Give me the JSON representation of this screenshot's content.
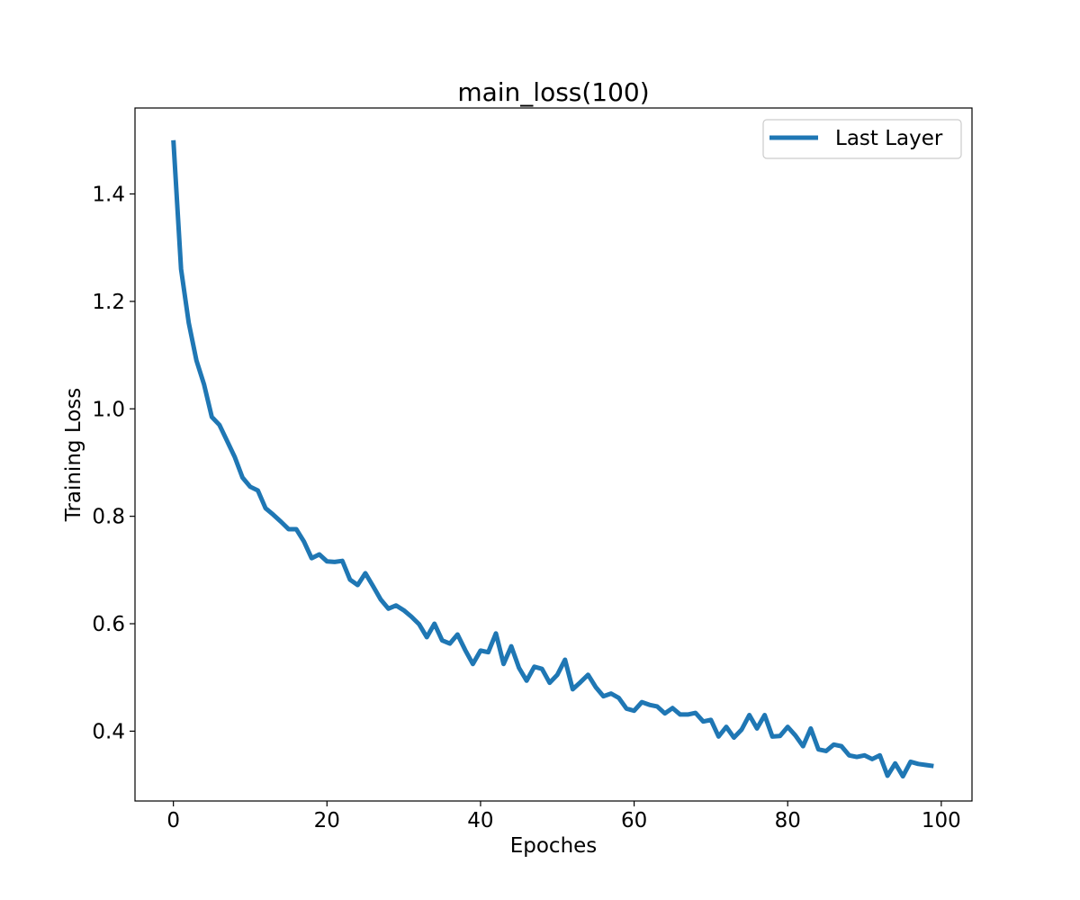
{
  "chart_data": {
    "type": "line",
    "title": "main_loss(100)",
    "xlabel": "Epoches",
    "ylabel": "Training Loss",
    "xlim": [
      -5,
      104
    ],
    "ylim": [
      0.27,
      1.56
    ],
    "xticks": [
      0,
      20,
      40,
      60,
      80,
      100
    ],
    "yticks": [
      0.4,
      0.6,
      0.8,
      1.0,
      1.2,
      1.4
    ],
    "xtick_labels": [
      "0",
      "20",
      "40",
      "60",
      "80",
      "100"
    ],
    "ytick_labels": [
      "0.4",
      "0.6",
      "0.8",
      "1.0",
      "1.2",
      "1.4"
    ],
    "grid": false,
    "legend_position": "top-right",
    "series": [
      {
        "name": "Last Layer",
        "color": "#1f77b4",
        "x": [
          0,
          1,
          2,
          3,
          4,
          5,
          6,
          7,
          8,
          9,
          10,
          11,
          12,
          13,
          14,
          15,
          16,
          17,
          18,
          19,
          20,
          21,
          22,
          23,
          24,
          25,
          26,
          27,
          28,
          29,
          30,
          31,
          32,
          33,
          34,
          35,
          36,
          37,
          38,
          39,
          40,
          41,
          42,
          43,
          44,
          45,
          46,
          47,
          48,
          49,
          50,
          51,
          52,
          53,
          54,
          55,
          56,
          57,
          58,
          59,
          60,
          61,
          62,
          63,
          64,
          65,
          66,
          67,
          68,
          69,
          70,
          71,
          72,
          73,
          74,
          75,
          76,
          77,
          78,
          79,
          80,
          81,
          82,
          83,
          84,
          85,
          86,
          87,
          88,
          89,
          90,
          91,
          92,
          93,
          94,
          95,
          96,
          97,
          98,
          99
        ],
        "values": [
          1.5,
          1.26,
          1.16,
          1.09,
          1.045,
          0.985,
          0.97,
          0.94,
          0.91,
          0.872,
          0.855,
          0.848,
          0.815,
          0.803,
          0.79,
          0.776,
          0.776,
          0.753,
          0.722,
          0.729,
          0.716,
          0.715,
          0.717,
          0.682,
          0.672,
          0.694,
          0.67,
          0.645,
          0.628,
          0.634,
          0.625,
          0.613,
          0.599,
          0.575,
          0.6,
          0.569,
          0.563,
          0.58,
          0.551,
          0.525,
          0.55,
          0.547,
          0.582,
          0.525,
          0.558,
          0.518,
          0.494,
          0.52,
          0.516,
          0.49,
          0.505,
          0.533,
          0.478,
          0.491,
          0.505,
          0.482,
          0.465,
          0.47,
          0.462,
          0.442,
          0.438,
          0.454,
          0.449,
          0.446,
          0.433,
          0.443,
          0.431,
          0.431,
          0.434,
          0.418,
          0.421,
          0.39,
          0.408,
          0.388,
          0.403,
          0.43,
          0.405,
          0.43,
          0.39,
          0.391,
          0.408,
          0.392,
          0.372,
          0.405,
          0.366,
          0.363,
          0.375,
          0.372,
          0.355,
          0.352,
          0.355,
          0.348,
          0.355,
          0.317,
          0.34,
          0.316,
          0.343,
          0.339,
          0.337,
          0.335
        ]
      }
    ]
  }
}
